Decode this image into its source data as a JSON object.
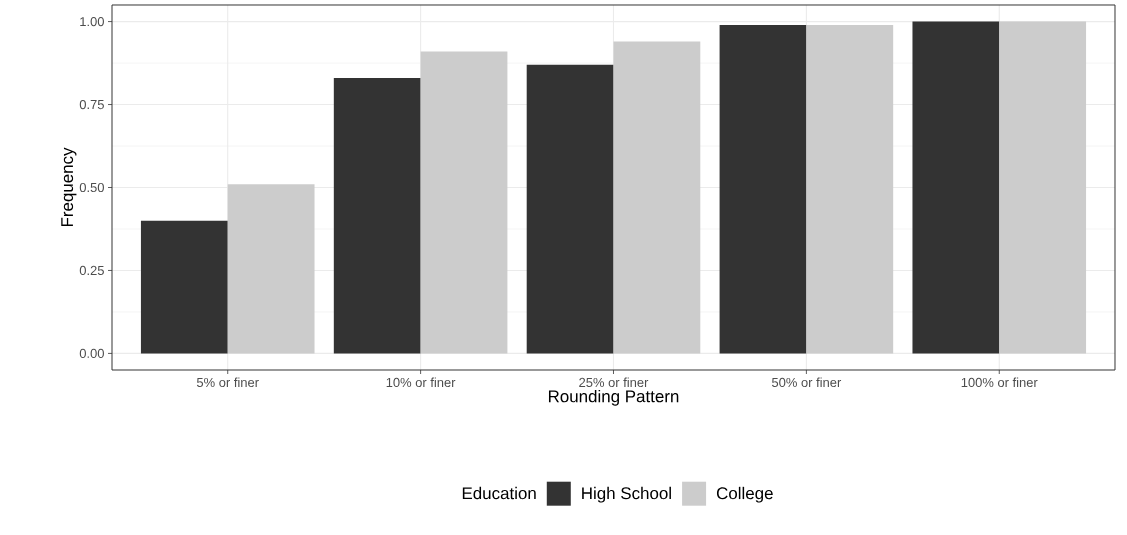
{
  "chart_data": {
    "type": "bar",
    "xlabel": "Rounding Pattern",
    "ylabel": "Frequency",
    "legend_title": "Education",
    "categories": [
      "5% or finer",
      "10% or finer",
      "25% or finer",
      "50% or finer",
      "100% or finer"
    ],
    "series": [
      {
        "name": "High School",
        "color": "#333333",
        "values": [
          0.4,
          0.83,
          0.87,
          0.99,
          1.0
        ]
      },
      {
        "name": "College",
        "color": "#cccccc",
        "values": [
          0.51,
          0.91,
          0.94,
          0.99,
          1.0
        ]
      }
    ],
    "ylim": [
      -0.05,
      1.05
    ],
    "yticks": [
      {
        "value": 0,
        "label": "0.00"
      },
      {
        "value": 0.25,
        "label": "0.25"
      },
      {
        "value": 0.5,
        "label": "0.50"
      },
      {
        "value": 0.75,
        "label": "0.75"
      },
      {
        "value": 1,
        "label": "1.00"
      }
    ],
    "grid": true,
    "legend": "bottom"
  }
}
